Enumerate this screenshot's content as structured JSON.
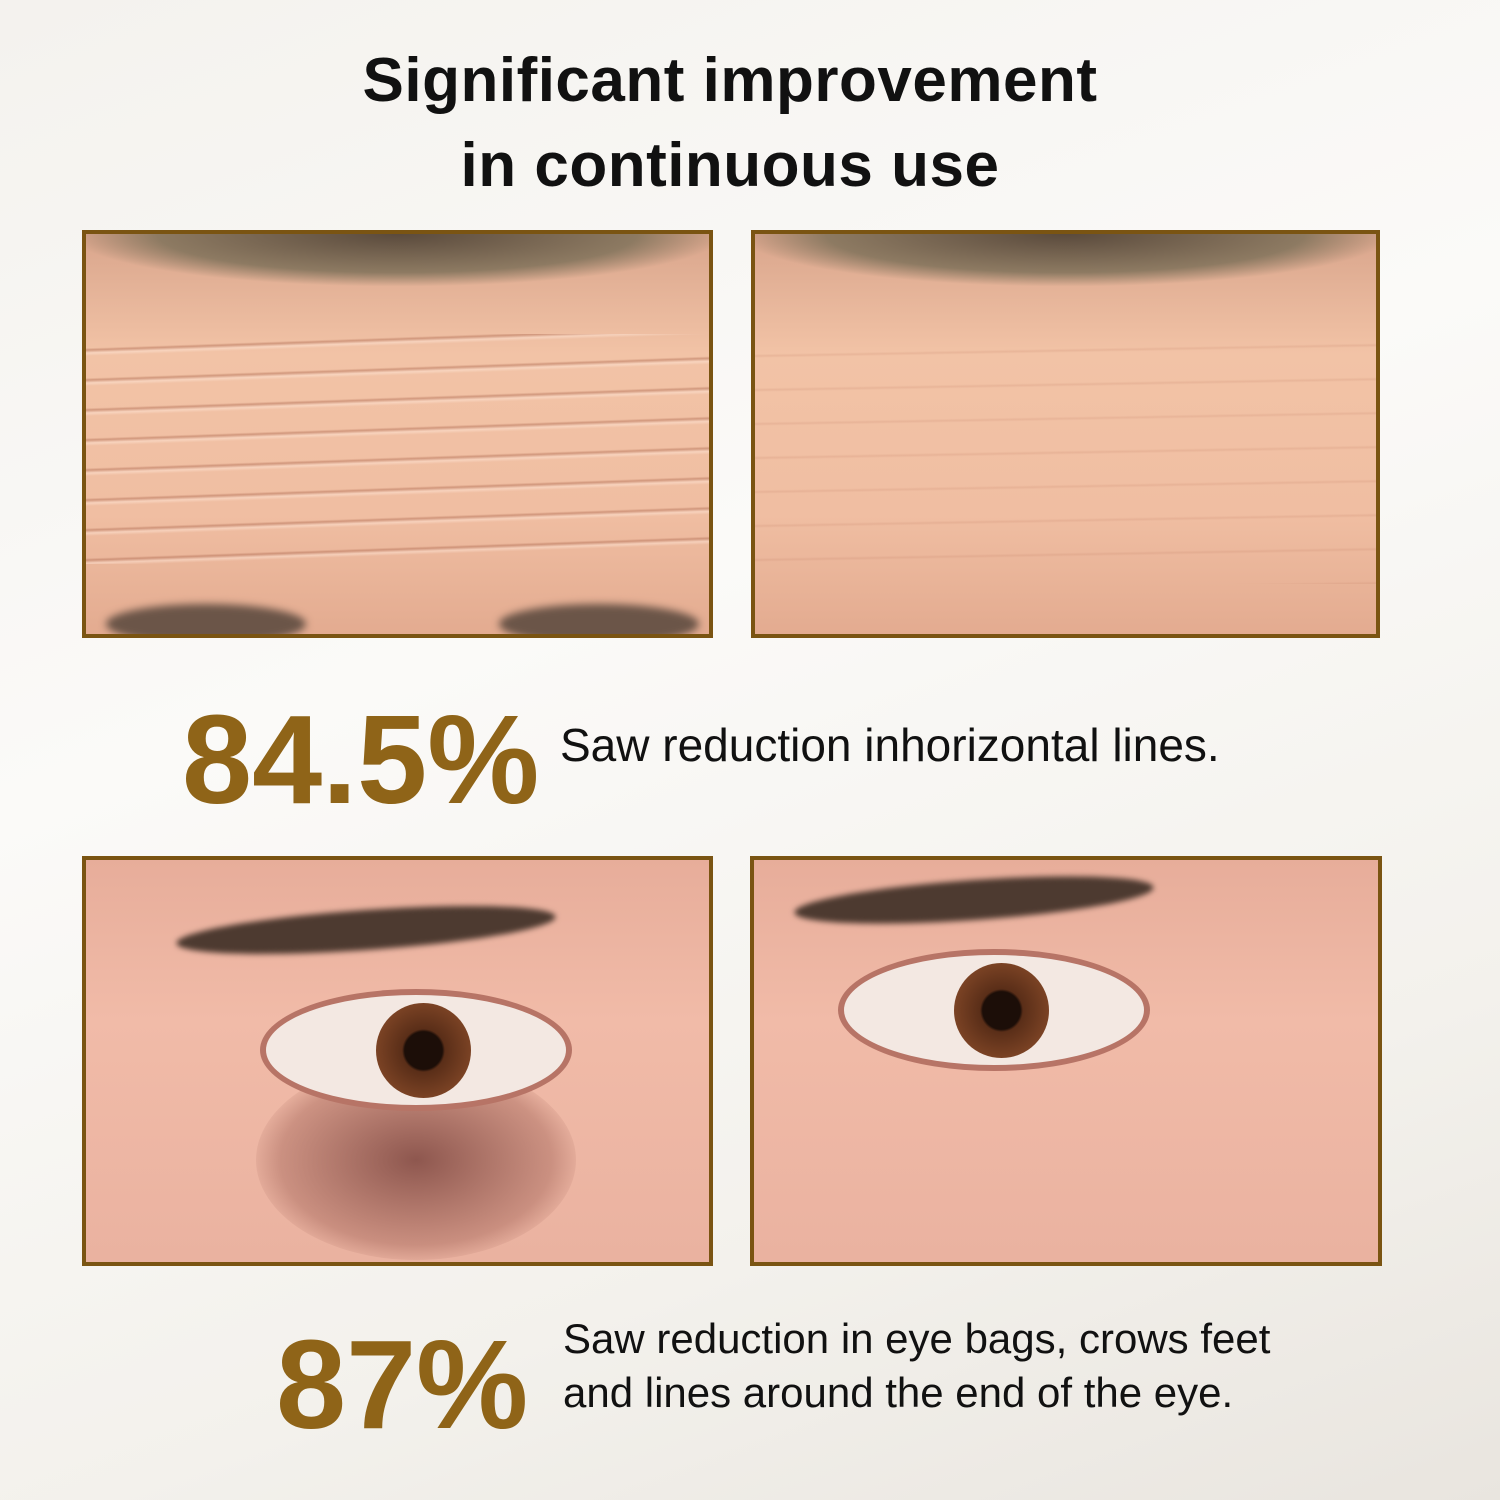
{
  "title": {
    "line1": "Significant improvement",
    "line2": "in continuous use"
  },
  "colors": {
    "accent": "#8f6418",
    "frame": "#7a5412",
    "text": "#111111"
  },
  "sections": [
    {
      "percent": "84.5%",
      "description": [
        "Saw reduction inhorizontal lines."
      ],
      "before_image": "forehead-wrinkles-before",
      "after_image": "forehead-smooth-after"
    },
    {
      "percent": "87%",
      "description": [
        "Saw reduction in eye bags, crows feet",
        "and lines around the end of the eye."
      ],
      "before_image": "eye-bags-before",
      "after_image": "eye-smooth-after"
    }
  ]
}
